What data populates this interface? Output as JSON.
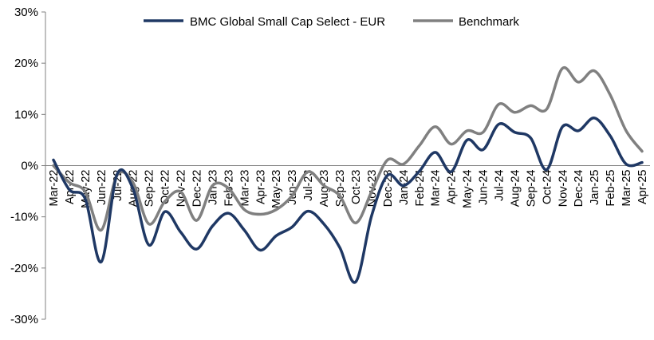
{
  "chart_data": {
    "type": "line",
    "title": "",
    "xlabel": "",
    "ylabel": "",
    "ylim": [
      -30,
      30
    ],
    "yticks": [
      "-30%",
      "-20%",
      "-10%",
      "0%",
      "10%",
      "20%",
      "30%"
    ],
    "ytick_values": [
      -30,
      -20,
      -10,
      0,
      10,
      20,
      30
    ],
    "grid": false,
    "legend_position": "top-center",
    "categories": [
      "Mar-22",
      "Apr-22",
      "May-22",
      "Jun-22",
      "Jul-22",
      "Aug-22",
      "Sep-22",
      "Oct-22",
      "Nov-22",
      "Dec-22",
      "Jan-23",
      "Feb-23",
      "Mar-23",
      "Apr-23",
      "May-23",
      "Jun-23",
      "Jul-23",
      "Aug-23",
      "Sep-23",
      "Oct-23",
      "Nov-23",
      "Dec-23",
      "Jan-24",
      "Feb-24",
      "Mar-24",
      "Apr-24",
      "May-24",
      "Jun-24",
      "Jul-24",
      "Aug-24",
      "Sep-24",
      "Oct-24",
      "Nov-24",
      "Dec-24",
      "Jan-25",
      "Feb-25",
      "Mar-25",
      "Apr-25"
    ],
    "series": [
      {
        "name": "BMC Global Small Cap Select - EUR",
        "color": "#1f3864",
        "values": [
          1.1,
          -4.7,
          -6.5,
          -18.8,
          -1.7,
          -4.5,
          -15.5,
          -9.0,
          -13.0,
          -16.3,
          -11.8,
          -9.3,
          -12.6,
          -16.5,
          -13.7,
          -12.0,
          -8.9,
          -11.4,
          -16.0,
          -22.7,
          -9.8,
          -1.9,
          -3.9,
          -1.1,
          2.6,
          -1.2,
          5.0,
          3.1,
          8.1,
          6.5,
          5.4,
          -0.8,
          7.6,
          6.8,
          9.3,
          5.8,
          0.3,
          0.6
        ]
      },
      {
        "name": "Benchmark",
        "color": "#808080",
        "values": [
          0.0,
          -3.3,
          -5.1,
          -12.6,
          -1.9,
          -3.3,
          -11.4,
          -7.0,
          -5.1,
          -10.7,
          -3.9,
          -4.4,
          -8.6,
          -9.5,
          -8.6,
          -5.9,
          -1.2,
          -3.9,
          -5.9,
          -11.2,
          -5.1,
          1.1,
          0.3,
          3.9,
          7.6,
          4.2,
          6.8,
          6.5,
          12.0,
          10.4,
          11.7,
          11.0,
          19.0,
          16.3,
          18.5,
          13.8,
          6.8,
          2.8
        ]
      }
    ]
  }
}
